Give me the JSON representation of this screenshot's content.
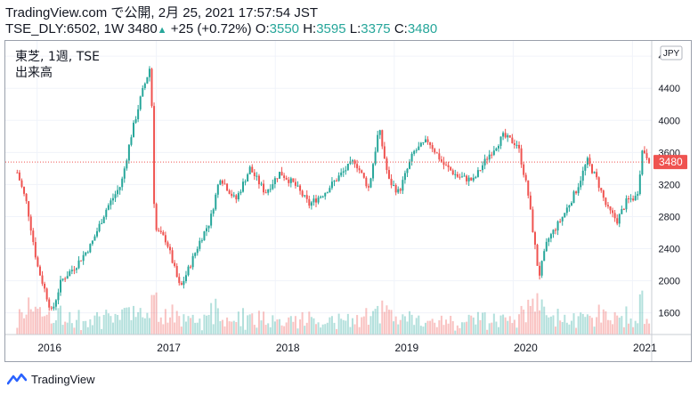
{
  "header": {
    "line1": "TradingView.com で公開, 2月 25, 2021 17:57:54 JST",
    "symbol": "TSE_DLY:6502, 1W",
    "last": "3480",
    "change": "+25 (+0.72%)",
    "o_label": "O:",
    "o_value": "3550",
    "h_label": "H:",
    "h_value": "3595",
    "l_label": "L:",
    "l_value": "3375",
    "c_label": "C:",
    "c_value": "3480"
  },
  "legend": {
    "line1": "東芝, 1週, TSE",
    "line2": "出来高"
  },
  "footer": {
    "brand": "TradingView",
    "logo_icon": "tradingview-logo-icon"
  },
  "colors": {
    "up": "#26a69a",
    "down": "#ef5350",
    "price_line": "#ef5350",
    "text": "#131722"
  },
  "chart_data": {
    "type": "candlestick",
    "title": "東芝, 1週, TSE",
    "currency_label": "JPY",
    "current_price_label": "3480",
    "current_price": 3480,
    "ylim": [
      1330,
      4990
    ],
    "y_ticks": [
      "1600",
      "2000",
      "2400",
      "2800",
      "3200",
      "3600",
      "4000",
      "4400",
      "4800"
    ],
    "x_ticks": [
      "2016",
      "2017",
      "2018",
      "2019",
      "2020",
      "2021"
    ],
    "x_range": [
      "2015-10",
      "2021-03"
    ],
    "grid": true,
    "volume_pane": true,
    "close_series": [
      [
        "2015-11-01",
        3350
      ],
      [
        "2015-12-01",
        2950
      ],
      [
        "2016-01-01",
        2200
      ],
      [
        "2016-02-15",
        1600
      ],
      [
        "2016-03-15",
        2000
      ],
      [
        "2016-05-01",
        2200
      ],
      [
        "2016-06-15",
        2450
      ],
      [
        "2016-08-01",
        2900
      ],
      [
        "2016-09-15",
        3200
      ],
      [
        "2016-10-15",
        3800
      ],
      [
        "2016-11-15",
        4300
      ],
      [
        "2016-12-15",
        4700
      ],
      [
        "2016-12-27",
        2650
      ],
      [
        "2017-02-01",
        2500
      ],
      [
        "2017-03-15",
        1900
      ],
      [
        "2017-04-15",
        2200
      ],
      [
        "2017-05-15",
        2500
      ],
      [
        "2017-06-15",
        2750
      ],
      [
        "2017-07-15",
        3300
      ],
      [
        "2017-09-01",
        3000
      ],
      [
        "2017-10-15",
        3400
      ],
      [
        "2017-12-01",
        3100
      ],
      [
        "2018-01-15",
        3350
      ],
      [
        "2018-03-01",
        3200
      ],
      [
        "2018-04-15",
        2950
      ],
      [
        "2018-06-01",
        3100
      ],
      [
        "2018-07-15",
        3300
      ],
      [
        "2018-09-01",
        3500
      ],
      [
        "2018-10-15",
        3150
      ],
      [
        "2018-11-15",
        3900
      ],
      [
        "2018-12-15",
        3250
      ],
      [
        "2019-01-15",
        3100
      ],
      [
        "2019-03-01",
        3600
      ],
      [
        "2019-04-15",
        3750
      ],
      [
        "2019-06-01",
        3450
      ],
      [
        "2019-07-15",
        3300
      ],
      [
        "2019-09-01",
        3250
      ],
      [
        "2019-10-15",
        3550
      ],
      [
        "2019-12-01",
        3800
      ],
      [
        "2020-01-15",
        3700
      ],
      [
        "2020-02-15",
        3100
      ],
      [
        "2020-03-20",
        2050
      ],
      [
        "2020-04-15",
        2500
      ],
      [
        "2020-06-01",
        2800
      ],
      [
        "2020-07-15",
        3150
      ],
      [
        "2020-08-15",
        3500
      ],
      [
        "2020-09-15",
        3250
      ],
      [
        "2020-10-15",
        2900
      ],
      [
        "2020-11-15",
        2750
      ],
      [
        "2020-12-15",
        3000
      ],
      [
        "2021-01-15",
        3050
      ],
      [
        "2021-02-01",
        3650
      ],
      [
        "2021-02-25",
        3480
      ]
    ]
  }
}
